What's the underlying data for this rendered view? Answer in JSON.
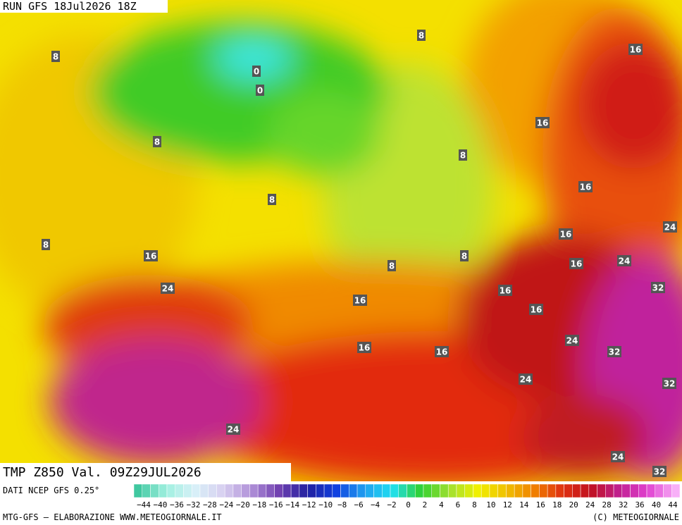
{
  "header": {
    "run": "RUN GFS 18Jul2026 18Z"
  },
  "contour_labels": [
    "0",
    "0",
    "8",
    "8",
    "16",
    "16",
    "8",
    "8",
    "16",
    "8",
    "24",
    "16",
    "8",
    "16",
    "8",
    "8",
    "16",
    "24",
    "24",
    "16",
    "32",
    "16",
    "16",
    "24",
    "16",
    "16",
    "32",
    "24",
    "32",
    "24",
    "24",
    "32"
  ],
  "footer": {
    "field": "TMP Z850 Val. 09Z29JUL2026",
    "source": "DATI NCEP GFS 0.25°",
    "credit": "MTG-GFS — ELABORAZIONE WWW.METEOGIORNALE.IT",
    "copyright": "(C) METEOGIORNALE"
  },
  "colorbar": {
    "labels": [
      "−44",
      "−40",
      "−36",
      "−32",
      "−28",
      "−24",
      "−20",
      "−18",
      "−16",
      "−14",
      "−12",
      "−10",
      "−8",
      "−6",
      "−4",
      "−2",
      "0",
      "2",
      "4",
      "6",
      "8",
      "10",
      "12",
      "14",
      "16",
      "18",
      "20",
      "24",
      "28",
      "32",
      "36",
      "40",
      "44"
    ]
  }
}
